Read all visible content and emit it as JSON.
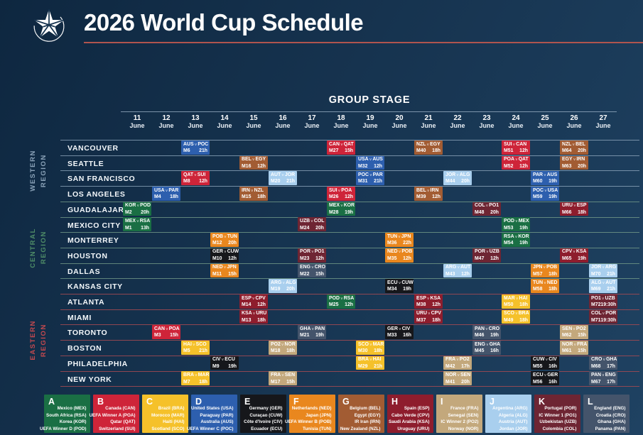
{
  "header": {
    "title": "2026 World Cup Schedule"
  },
  "chart_data": {
    "type": "table",
    "title": "2026 World Cup Schedule",
    "section": "GROUP STAGE",
    "month": "June",
    "days": [
      "11",
      "12",
      "13",
      "14",
      "15",
      "16",
      "17",
      "18",
      "19",
      "20",
      "21",
      "22",
      "23",
      "24",
      "25",
      "26",
      "27"
    ],
    "x_categories": [
      "11 June",
      "12 June",
      "13 June",
      "14 June",
      "15 June",
      "16 June",
      "17 June",
      "18 June",
      "19 June",
      "20 June",
      "21 June",
      "22 June",
      "23 June",
      "24 June",
      "25 June",
      "26 June",
      "27 June"
    ],
    "legend_position": "bottom",
    "regions": [
      {
        "id": "western",
        "label_line1": "WESTERN",
        "label_line2": "REGION",
        "text_color": "#8aa2b8",
        "line_color": "rgba(148,172,193,0.75)",
        "row_start": 0,
        "row_count": 4
      },
      {
        "id": "central",
        "label_line1": "CENTRAL",
        "label_line2": "REGION",
        "text_color": "#4f8c67",
        "line_color": "rgba(122,161,140,0.75)",
        "row_start": 4,
        "row_count": 6
      },
      {
        "id": "eastern",
        "label_line1": "EASTERN",
        "label_line2": "REGION",
        "text_color": "#c2494f",
        "line_color": "rgba(166,74,82,0.85)",
        "row_start": 10,
        "row_count": 6
      }
    ],
    "group_order": [
      "A",
      "B",
      "C",
      "D",
      "E",
      "F",
      "G",
      "H",
      "I",
      "J",
      "K",
      "L"
    ],
    "groups": {
      "A": {
        "letter": "A",
        "color": "#1a6f44",
        "teams": [
          "Mexico (MEX)",
          "South Africa (RSA)",
          "Korea (KOR)",
          "UEFA Winner D (POD)"
        ]
      },
      "B": {
        "letter": "B",
        "color": "#ce2439",
        "teams": [
          "Canada (CAN)",
          "UEFA Winner A (POA)",
          "Qatar (QAT)",
          "Switzerland (SUI)"
        ]
      },
      "C": {
        "letter": "C",
        "color": "#f5c12a",
        "teams": [
          "Brazil (BRA)",
          "Morocco (MAR)",
          "Haiti (HAI)",
          "Scotland (SCO)"
        ]
      },
      "D": {
        "letter": "D",
        "color": "#2d5fae",
        "teams": [
          "United States (USA)",
          "Paraguay (PAR)",
          "Australia (AUS)",
          "UEFA Winner C (POC)"
        ]
      },
      "E": {
        "letter": "E",
        "color": "#16171b",
        "teams": [
          "Germany (GER)",
          "Curaçao (CUW)",
          "Côte d'Ivoire (CIV)",
          "Ecuador (ECU)"
        ]
      },
      "F": {
        "letter": "F",
        "color": "#e9871e",
        "teams": [
          "Netherlands (NED)",
          "Japan (JPN)",
          "UEFA Winner B (POB)",
          "Tunisia (TUN)"
        ]
      },
      "G": {
        "letter": "G",
        "color": "#a25c33",
        "teams": [
          "Belgium (BEL)",
          "Egypt (EGY)",
          "IR Iran (IRN)",
          "New Zealand (NZL)"
        ]
      },
      "H": {
        "letter": "H",
        "color": "#8e1d2d",
        "teams": [
          "Spain (ESP)",
          "Cabo Verde (CPV)",
          "Saudi Arabia (KSA)",
          "Uruguay (URU)"
        ]
      },
      "I": {
        "letter": "I",
        "color": "#c3a87c",
        "teams": [
          "France (FRA)",
          "Senegal (SEN)",
          "IC Winner 2 (PO2)",
          "Norway (NOR)"
        ]
      },
      "J": {
        "letter": "J",
        "color": "#a9cfee",
        "teams": [
          "Argentina (ARG)",
          "Algeria (ALG)",
          "Austria (AUT)",
          "Jordan (JOR)"
        ]
      },
      "K": {
        "letter": "K",
        "color": "#6e2533",
        "teams": [
          "Portugal (POR)",
          "IC Winner 1 (PO1)",
          "Uzbekistan (UZB)",
          "Colombia (COL)"
        ]
      },
      "L": {
        "letter": "L",
        "color": "#44546b",
        "teams": [
          "England (ENG)",
          "Croatia (CRO)",
          "Ghana (GHA)",
          "Panama (PAN)"
        ]
      }
    },
    "cities": [
      {
        "name": "VANCOUVER",
        "region": "western",
        "matches": [
          {
            "day": 13,
            "home": "AUS",
            "away": "POC",
            "match": "M6",
            "time": "21h",
            "group": "D"
          },
          {
            "day": 18,
            "home": "CAN",
            "away": "QAT",
            "match": "M27",
            "time": "15h",
            "group": "B"
          },
          {
            "day": 21,
            "home": "NZL",
            "away": "EGY",
            "match": "M40",
            "time": "18h",
            "group": "G"
          },
          {
            "day": 24,
            "home": "SUI",
            "away": "CAN",
            "match": "M51",
            "time": "12h",
            "group": "B"
          },
          {
            "day": 26,
            "home": "NZL",
            "away": "BEL",
            "match": "M64",
            "time": "20h",
            "group": "G"
          }
        ]
      },
      {
        "name": "SEATTLE",
        "region": "western",
        "matches": [
          {
            "day": 15,
            "home": "BEL",
            "away": "EGY",
            "match": "M16",
            "time": "12h",
            "group": "G"
          },
          {
            "day": 19,
            "home": "USA",
            "away": "AUS",
            "match": "M32",
            "time": "12h",
            "group": "D"
          },
          {
            "day": 24,
            "home": "POA",
            "away": "QAT",
            "match": "M52",
            "time": "12h",
            "group": "B"
          },
          {
            "day": 26,
            "home": "EGY",
            "away": "IRN",
            "match": "M63",
            "time": "20h",
            "group": "G"
          }
        ]
      },
      {
        "name": "SAN FRANCISCO",
        "region": "western",
        "matches": [
          {
            "day": 13,
            "home": "QAT",
            "away": "SUI",
            "match": "M8",
            "time": "12h",
            "group": "B"
          },
          {
            "day": 16,
            "home": "AUT",
            "away": "JOR",
            "match": "M20",
            "time": "21h",
            "group": "J"
          },
          {
            "day": 19,
            "home": "POC",
            "away": "PAR",
            "match": "M31",
            "time": "21h",
            "group": "D"
          },
          {
            "day": 22,
            "home": "JOR",
            "away": "ALG",
            "match": "M44",
            "time": "20h",
            "group": "J"
          },
          {
            "day": 25,
            "home": "PAR",
            "away": "AUS",
            "match": "M60",
            "time": "19h",
            "group": "D"
          }
        ]
      },
      {
        "name": "LOS ANGELES",
        "region": "western",
        "matches": [
          {
            "day": 12,
            "home": "USA",
            "away": "PAR",
            "match": "M4",
            "time": "18h",
            "group": "D"
          },
          {
            "day": 15,
            "home": "IRN",
            "away": "NZL",
            "match": "M15",
            "time": "18h",
            "group": "G"
          },
          {
            "day": 18,
            "home": "SUI",
            "away": "POA",
            "match": "M26",
            "time": "12h",
            "group": "B"
          },
          {
            "day": 21,
            "home": "BEL",
            "away": "IRN",
            "match": "M39",
            "time": "12h",
            "group": "G"
          },
          {
            "day": 25,
            "home": "POC",
            "away": "USA",
            "match": "M59",
            "time": "19h",
            "group": "D"
          }
        ]
      },
      {
        "name": "GUADALAJARA",
        "region": "central",
        "matches": [
          {
            "day": 11,
            "home": "KOR",
            "away": "POD",
            "match": "M2",
            "time": "20h",
            "group": "A"
          },
          {
            "day": 18,
            "home": "MEX",
            "away": "KOR",
            "match": "M28",
            "time": "19h",
            "group": "A"
          },
          {
            "day": 23,
            "home": "COL",
            "away": "PO1",
            "match": "M48",
            "time": "20h",
            "group": "K"
          },
          {
            "day": 26,
            "home": "URU",
            "away": "ESP",
            "match": "M66",
            "time": "18h",
            "group": "H"
          }
        ]
      },
      {
        "name": "MEXICO CITY",
        "region": "central",
        "matches": [
          {
            "day": 11,
            "home": "MEX",
            "away": "RSA",
            "match": "M1",
            "time": "13h",
            "group": "A"
          },
          {
            "day": 17,
            "home": "UZB",
            "away": "COL",
            "match": "M24",
            "time": "20h",
            "group": "K"
          },
          {
            "day": 24,
            "home": "POD",
            "away": "MEX",
            "match": "M53",
            "time": "19h",
            "group": "A"
          }
        ]
      },
      {
        "name": "MONTERREY",
        "region": "central",
        "matches": [
          {
            "day": 14,
            "home": "POB",
            "away": "TUN",
            "match": "M12",
            "time": "20h",
            "group": "F"
          },
          {
            "day": 20,
            "home": "TUN",
            "away": "JPN",
            "match": "M36",
            "time": "22h",
            "group": "F"
          },
          {
            "day": 24,
            "home": "RSA",
            "away": "KOR",
            "match": "M54",
            "time": "19h",
            "group": "A"
          }
        ]
      },
      {
        "name": "HOUSTON",
        "region": "central",
        "matches": [
          {
            "day": 14,
            "home": "GER",
            "away": "CUW",
            "match": "M10",
            "time": "12h",
            "group": "E"
          },
          {
            "day": 17,
            "home": "POR",
            "away": "PO1",
            "match": "M23",
            "time": "12h",
            "group": "K"
          },
          {
            "day": 20,
            "home": "NED",
            "away": "POB",
            "match": "M35",
            "time": "12h",
            "group": "F"
          },
          {
            "day": 23,
            "home": "POR",
            "away": "UZB",
            "match": "M47",
            "time": "12h",
            "group": "K"
          },
          {
            "day": 26,
            "home": "CPV",
            "away": "KSA",
            "match": "M65",
            "time": "19h",
            "group": "H"
          }
        ]
      },
      {
        "name": "DALLAS",
        "region": "central",
        "matches": [
          {
            "day": 14,
            "home": "NED",
            "away": "JPN",
            "match": "M11",
            "time": "15h",
            "group": "F"
          },
          {
            "day": 17,
            "home": "ENG",
            "away": "CRO",
            "match": "M22",
            "time": "15h",
            "group": "L"
          },
          {
            "day": 22,
            "home": "ARG",
            "away": "AUT",
            "match": "M43",
            "time": "12h",
            "group": "J"
          },
          {
            "day": 25,
            "home": "JPN",
            "away": "POB",
            "match": "M57",
            "time": "18h",
            "group": "F"
          },
          {
            "day": 27,
            "home": "JOR",
            "away": "ARG",
            "match": "M70",
            "time": "21h",
            "group": "J"
          }
        ]
      },
      {
        "name": "KANSAS CITY",
        "region": "central",
        "matches": [
          {
            "day": 16,
            "home": "ARG",
            "away": "ALG",
            "match": "M19",
            "time": "20h",
            "group": "J"
          },
          {
            "day": 20,
            "home": "ECU",
            "away": "CUW",
            "match": "M34",
            "time": "19h",
            "group": "E"
          },
          {
            "day": 25,
            "home": "TUN",
            "away": "NED",
            "match": "M58",
            "time": "18h",
            "group": "F"
          },
          {
            "day": 27,
            "home": "ALG",
            "away": "AUT",
            "match": "M69",
            "time": "21h",
            "group": "J"
          }
        ]
      },
      {
        "name": "ATLANTA",
        "region": "eastern",
        "matches": [
          {
            "day": 15,
            "home": "ESP",
            "away": "CPV",
            "match": "M14",
            "time": "12h",
            "group": "H"
          },
          {
            "day": 18,
            "home": "POD",
            "away": "RSA",
            "match": "M25",
            "time": "12h",
            "group": "A"
          },
          {
            "day": 21,
            "home": "ESP",
            "away": "KSA",
            "match": "M38",
            "time": "12h",
            "group": "H"
          },
          {
            "day": 24,
            "home": "MAR",
            "away": "HAI",
            "match": "M50",
            "time": "18h",
            "group": "C"
          },
          {
            "day": 27,
            "home": "PO1",
            "away": "UZB",
            "match": "M72",
            "time": "19:30h",
            "group": "K"
          }
        ]
      },
      {
        "name": "MIAMI",
        "region": "eastern",
        "matches": [
          {
            "day": 15,
            "home": "KSA",
            "away": "URU",
            "match": "M13",
            "time": "18h",
            "group": "H"
          },
          {
            "day": 21,
            "home": "URU",
            "away": "CPV",
            "match": "M37",
            "time": "18h",
            "group": "H"
          },
          {
            "day": 24,
            "home": "SCO",
            "away": "BRA",
            "match": "M49",
            "time": "18h",
            "group": "C"
          },
          {
            "day": 27,
            "home": "COL",
            "away": "POR",
            "match": "M71",
            "time": "19:30h",
            "group": "K"
          }
        ]
      },
      {
        "name": "TORONTO",
        "region": "eastern",
        "matches": [
          {
            "day": 12,
            "home": "CAN",
            "away": "POA",
            "match": "M3",
            "time": "15h",
            "group": "B"
          },
          {
            "day": 17,
            "home": "GHA",
            "away": "PAN",
            "match": "M21",
            "time": "19h",
            "group": "L"
          },
          {
            "day": 20,
            "home": "GER",
            "away": "CIV",
            "match": "M33",
            "time": "16h",
            "group": "E"
          },
          {
            "day": 23,
            "home": "PAN",
            "away": "CRO",
            "match": "M46",
            "time": "19h",
            "group": "L"
          },
          {
            "day": 26,
            "home": "SEN",
            "away": "PO2",
            "match": "M62",
            "time": "15h",
            "group": "I"
          }
        ]
      },
      {
        "name": "BOSTON",
        "region": "eastern",
        "matches": [
          {
            "day": 13,
            "home": "HAI",
            "away": "SCO",
            "match": "M5",
            "time": "21h",
            "group": "C"
          },
          {
            "day": 16,
            "home": "PO2",
            "away": "NOR",
            "match": "M18",
            "time": "18h",
            "group": "I"
          },
          {
            "day": 19,
            "home": "SCO",
            "away": "MAR",
            "match": "M30",
            "time": "18h",
            "group": "C"
          },
          {
            "day": 23,
            "home": "ENG",
            "away": "GHA",
            "match": "M45",
            "time": "16h",
            "group": "L"
          },
          {
            "day": 26,
            "home": "NOR",
            "away": "FRA",
            "match": "M61",
            "time": "15h",
            "group": "I"
          }
        ]
      },
      {
        "name": "PHILADELPHIA",
        "region": "eastern",
        "matches": [
          {
            "day": 14,
            "home": "CIV",
            "away": "ECU",
            "match": "M9",
            "time": "19h",
            "group": "E"
          },
          {
            "day": 19,
            "home": "BRA",
            "away": "HAI",
            "match": "M29",
            "time": "21h",
            "group": "C"
          },
          {
            "day": 22,
            "home": "FRA",
            "away": "PO2",
            "match": "M42",
            "time": "17h",
            "group": "I"
          },
          {
            "day": 25,
            "home": "CUW",
            "away": "CIV",
            "match": "M55",
            "time": "16h",
            "group": "E"
          },
          {
            "day": 27,
            "home": "CRO",
            "away": "GHA",
            "match": "M68",
            "time": "17h",
            "group": "L"
          }
        ]
      },
      {
        "name": "NEW YORK",
        "region": "eastern",
        "matches": [
          {
            "day": 13,
            "home": "BRA",
            "away": "MAR",
            "match": "M7",
            "time": "18h",
            "group": "C"
          },
          {
            "day": 16,
            "home": "FRA",
            "away": "SEN",
            "match": "M17",
            "time": "15h",
            "group": "I"
          },
          {
            "day": 22,
            "home": "NOR",
            "away": "SEN",
            "match": "M41",
            "time": "20h",
            "group": "I"
          },
          {
            "day": 25,
            "home": "ECU",
            "away": "GER",
            "match": "M56",
            "time": "16h",
            "group": "E"
          },
          {
            "day": 27,
            "home": "PAN",
            "away": "ENG",
            "match": "M67",
            "time": "17h",
            "group": "L"
          }
        ]
      }
    ]
  }
}
